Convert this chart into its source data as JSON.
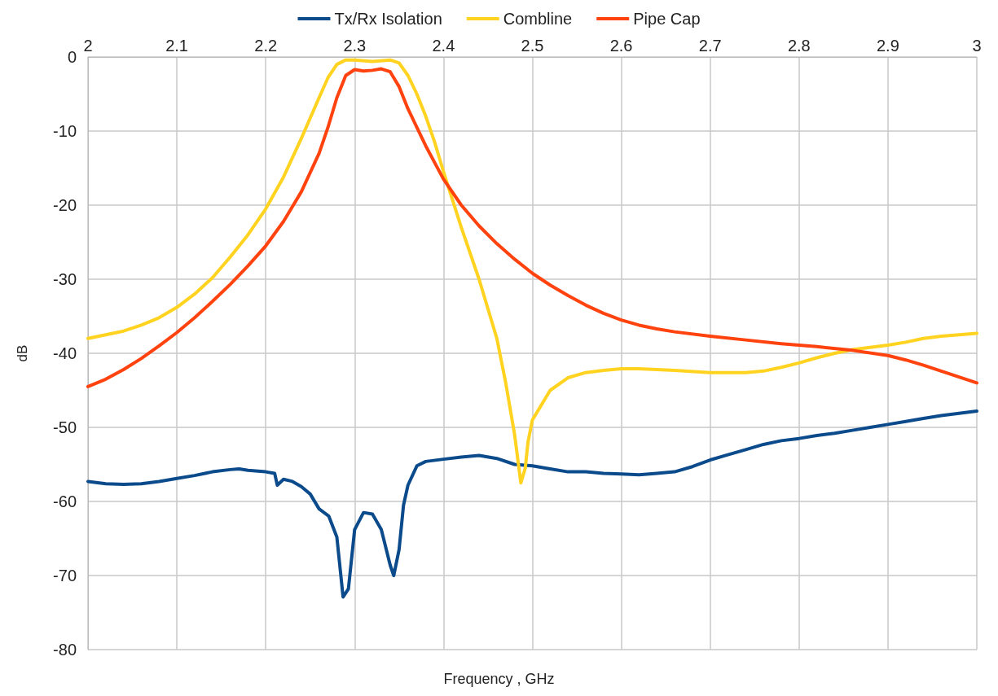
{
  "chart_data": {
    "type": "line",
    "xlabel": "Frequency , GHz",
    "ylabel": "dB",
    "xlim": [
      2,
      3
    ],
    "xticks": [
      2,
      2.1,
      2.2,
      2.3,
      2.4,
      2.5,
      2.6,
      2.7,
      2.8,
      2.9,
      3
    ],
    "ylim": [
      -80,
      0
    ],
    "yticks": [
      -80,
      -70,
      -60,
      -50,
      -40,
      -30,
      -20,
      -10,
      0
    ],
    "grid": true,
    "legend": "top",
    "marker": "none",
    "line_style": "solid",
    "series": [
      {
        "name": "Tx/Rx Isolation",
        "color": "#0b4a8b",
        "x": [
          2,
          2.02,
          2.04,
          2.06,
          2.08,
          2.1,
          2.12,
          2.14,
          2.16,
          2.17,
          2.18,
          2.2,
          2.21,
          2.213,
          2.22,
          2.23,
          2.24,
          2.25,
          2.26,
          2.271,
          2.28,
          2.287,
          2.293,
          2.3,
          2.31,
          2.32,
          2.33,
          2.34,
          2.344,
          2.35,
          2.355,
          2.36,
          2.37,
          2.38,
          2.4,
          2.42,
          2.44,
          2.46,
          2.48,
          2.5,
          2.52,
          2.54,
          2.56,
          2.58,
          2.6,
          2.62,
          2.64,
          2.66,
          2.68,
          2.7,
          2.72,
          2.74,
          2.76,
          2.78,
          2.8,
          2.82,
          2.84,
          2.86,
          2.88,
          2.9,
          2.92,
          2.94,
          2.96,
          2.98,
          3
        ],
        "values": [
          -57.3,
          -57.6,
          -57.7,
          -57.6,
          -57.3,
          -56.9,
          -56.5,
          -56,
          -55.7,
          -55.6,
          -55.8,
          -56,
          -56.2,
          -57.8,
          -57,
          -57.3,
          -58,
          -59,
          -61,
          -62,
          -64.8,
          -72.9,
          -71.8,
          -63.8,
          -61.5,
          -61.7,
          -63.8,
          -68.6,
          -70,
          -66.5,
          -60.5,
          -57.8,
          -55.2,
          -54.6,
          -54.3,
          -54,
          -53.8,
          -54.2,
          -55,
          -55.2,
          -55.6,
          -56,
          -56,
          -56.2,
          -56.3,
          -56.4,
          -56.2,
          -56,
          -55.3,
          -54.4,
          -53.7,
          -53,
          -52.3,
          -51.8,
          -51.5,
          -51.1,
          -50.8,
          -50.4,
          -50,
          -49.6,
          -49.2,
          -48.8,
          -48.4,
          -48.1,
          -47.8
        ]
      },
      {
        "name": "Combline",
        "color": "#ffd320",
        "x": [
          2,
          2.02,
          2.04,
          2.06,
          2.08,
          2.1,
          2.12,
          2.14,
          2.16,
          2.18,
          2.2,
          2.22,
          2.24,
          2.26,
          2.27,
          2.28,
          2.29,
          2.3,
          2.32,
          2.34,
          2.35,
          2.36,
          2.37,
          2.38,
          2.39,
          2.4,
          2.42,
          2.44,
          2.46,
          2.47,
          2.48,
          2.487,
          2.492,
          2.495,
          2.5,
          2.52,
          2.54,
          2.56,
          2.58,
          2.6,
          2.62,
          2.64,
          2.66,
          2.7,
          2.74,
          2.76,
          2.78,
          2.8,
          2.82,
          2.84,
          2.86,
          2.88,
          2.9,
          2.92,
          2.94,
          2.96,
          2.98,
          3
        ],
        "values": [
          -38,
          -37.5,
          -37,
          -36.2,
          -35.2,
          -33.8,
          -32,
          -29.8,
          -27,
          -24,
          -20.5,
          -16.2,
          -11,
          -5.5,
          -2.8,
          -1,
          -0.4,
          -0.4,
          -0.6,
          -0.4,
          -0.8,
          -2.5,
          -5,
          -8,
          -11.5,
          -15.5,
          -23,
          -30,
          -38,
          -44,
          -51,
          -57.5,
          -55.5,
          -52,
          -49,
          -45,
          -43.3,
          -42.6,
          -42.3,
          -42.1,
          -42.1,
          -42.2,
          -42.3,
          -42.6,
          -42.6,
          -42.4,
          -41.9,
          -41.3,
          -40.6,
          -40,
          -39.5,
          -39.2,
          -38.9,
          -38.5,
          -38,
          -37.7,
          -37.5,
          -37.3
        ]
      },
      {
        "name": "Pipe Cap",
        "color": "#ff420e",
        "x": [
          2,
          2.02,
          2.04,
          2.06,
          2.08,
          2.1,
          2.12,
          2.14,
          2.16,
          2.18,
          2.2,
          2.22,
          2.24,
          2.26,
          2.27,
          2.28,
          2.29,
          2.3,
          2.31,
          2.32,
          2.33,
          2.34,
          2.35,
          2.36,
          2.38,
          2.4,
          2.42,
          2.44,
          2.46,
          2.48,
          2.5,
          2.52,
          2.54,
          2.56,
          2.58,
          2.6,
          2.62,
          2.64,
          2.66,
          2.7,
          2.74,
          2.78,
          2.82,
          2.86,
          2.9,
          2.92,
          2.94,
          2.96,
          2.98,
          3
        ],
        "values": [
          -44.5,
          -43.5,
          -42.2,
          -40.7,
          -39,
          -37.2,
          -35.2,
          -33,
          -30.7,
          -28.2,
          -25.5,
          -22.2,
          -18.2,
          -13,
          -9.5,
          -5.5,
          -2.5,
          -1.7,
          -1.9,
          -1.8,
          -1.6,
          -2,
          -4,
          -7,
          -12,
          -16.5,
          -20,
          -22.8,
          -25.2,
          -27.3,
          -29.2,
          -30.8,
          -32.2,
          -33.5,
          -34.6,
          -35.5,
          -36.2,
          -36.7,
          -37.1,
          -37.7,
          -38.2,
          -38.7,
          -39.1,
          -39.6,
          -40.3,
          -40.9,
          -41.6,
          -42.4,
          -43.2,
          -44
        ]
      }
    ]
  }
}
